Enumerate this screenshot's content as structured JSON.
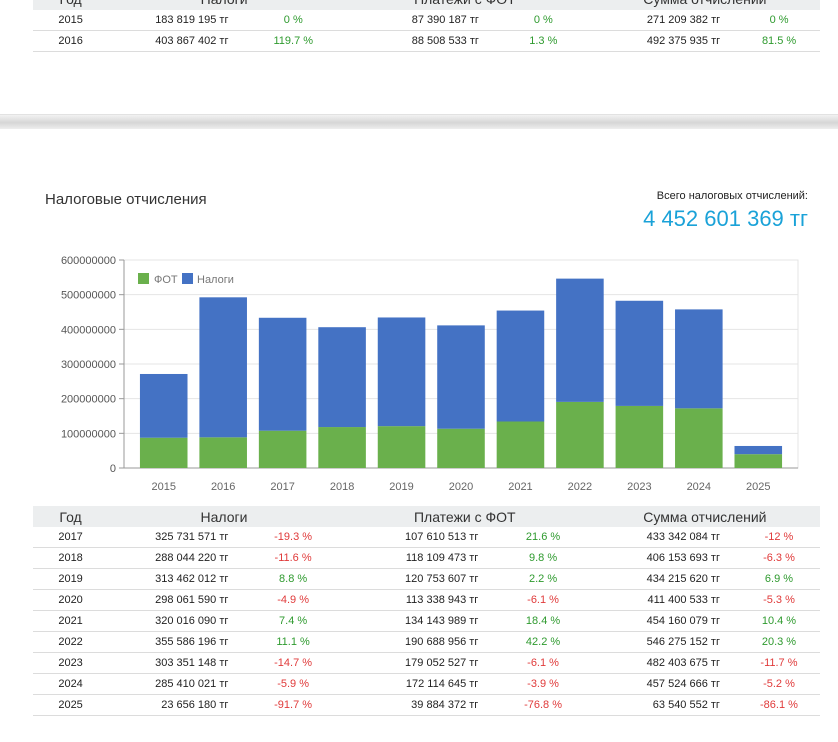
{
  "top_table": {
    "headers": [
      "Год",
      "Налоги",
      "Платежи с ФОТ",
      "Сумма отчислений"
    ],
    "rows": [
      {
        "year": "2015",
        "tax": "183 819 195 тг",
        "tax_pct": "0 %",
        "fot": "87 390 187 тг",
        "fot_pct": "0 %",
        "sum": "271 209 382 тг",
        "sum_pct": "0 %"
      },
      {
        "year": "2016",
        "tax": "403 867 402 тг",
        "tax_pct": "119.7 %",
        "fot": "88 508 533 тг",
        "fot_pct": "1.3 %",
        "sum": "492 375 935 тг",
        "sum_pct": "81.5 %"
      }
    ]
  },
  "section": {
    "title": "Налоговые отчисления",
    "total_label": "Всего налоговых отчислений:",
    "total_value": "4 452 601 369 тг"
  },
  "colors": {
    "fot": "#6ab04c",
    "tax": "#4472c4",
    "positive": "#2e9a2e",
    "negative": "#e03a3a",
    "accent": "#1aa2d8"
  },
  "chart_data": {
    "type": "bar",
    "stacked": true,
    "categories": [
      "2015",
      "2016",
      "2017",
      "2018",
      "2019",
      "2020",
      "2021",
      "2022",
      "2023",
      "2024",
      "2025"
    ],
    "series": [
      {
        "name": "ФОТ",
        "values": [
          87390187,
          88508533,
          107610513,
          118109473,
          120753607,
          113338943,
          134143989,
          190688956,
          179052527,
          172114645,
          39884372
        ]
      },
      {
        "name": "Налоги",
        "values": [
          183819195,
          403867402,
          325731571,
          288044220,
          313462012,
          298061590,
          320016090,
          355586196,
          303351148,
          285410021,
          23656180
        ]
      }
    ],
    "ylim": [
      0,
      600000000
    ],
    "yticks": [
      "0",
      "100000000",
      "200000000",
      "300000000",
      "400000000",
      "500000000",
      "600000000"
    ],
    "grid": true,
    "legend": "top-left"
  },
  "bottom_table": {
    "headers": [
      "Год",
      "Налоги",
      "Платежи с ФОТ",
      "Сумма отчислений"
    ],
    "rows": [
      {
        "year": "2017",
        "tax": "325 731 571 тг",
        "tax_pct": "-19.3 %",
        "fot": "107 610 513 тг",
        "fot_pct": "21.6 %",
        "sum": "433 342 084 тг",
        "sum_pct": "-12 %"
      },
      {
        "year": "2018",
        "tax": "288 044 220 тг",
        "tax_pct": "-11.6 %",
        "fot": "118 109 473 тг",
        "fot_pct": "9.8 %",
        "sum": "406 153 693 тг",
        "sum_pct": "-6.3 %"
      },
      {
        "year": "2019",
        "tax": "313 462 012 тг",
        "tax_pct": "8.8 %",
        "fot": "120 753 607 тг",
        "fot_pct": "2.2 %",
        "sum": "434 215 620 тг",
        "sum_pct": "6.9 %"
      },
      {
        "year": "2020",
        "tax": "298 061 590 тг",
        "tax_pct": "-4.9 %",
        "fot": "113 338 943 тг",
        "fot_pct": "-6.1 %",
        "sum": "411 400 533 тг",
        "sum_pct": "-5.3 %"
      },
      {
        "year": "2021",
        "tax": "320 016 090 тг",
        "tax_pct": "7.4 %",
        "fot": "134 143 989 тг",
        "fot_pct": "18.4 %",
        "sum": "454 160 079 тг",
        "sum_pct": "10.4 %"
      },
      {
        "year": "2022",
        "tax": "355 586 196 тг",
        "tax_pct": "11.1 %",
        "fot": "190 688 956 тг",
        "fot_pct": "42.2 %",
        "sum": "546 275 152 тг",
        "sum_pct": "20.3 %"
      },
      {
        "year": "2023",
        "tax": "303 351 148 тг",
        "tax_pct": "-14.7 %",
        "fot": "179 052 527 тг",
        "fot_pct": "-6.1 %",
        "sum": "482 403 675 тг",
        "sum_pct": "-11.7 %"
      },
      {
        "year": "2024",
        "tax": "285 410 021 тг",
        "tax_pct": "-5.9 %",
        "fot": "172 114 645 тг",
        "fot_pct": "-3.9 %",
        "sum": "457 524 666 тг",
        "sum_pct": "-5.2 %"
      },
      {
        "year": "2025",
        "tax": "23 656 180 тг",
        "tax_pct": "-91.7 %",
        "fot": "39 884 372 тг",
        "fot_pct": "-76.8 %",
        "sum": "63 540 552 тг",
        "sum_pct": "-86.1 %"
      }
    ]
  }
}
